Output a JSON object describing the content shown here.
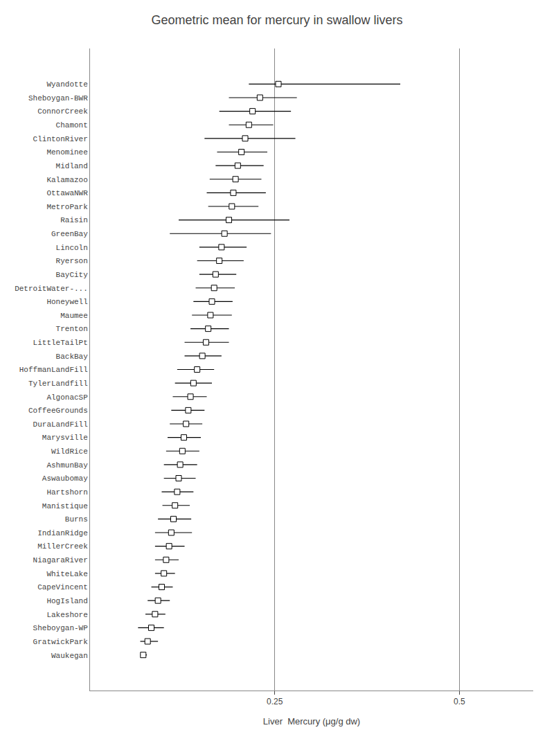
{
  "chart_data": {
    "type": "forest",
    "title": "Geometric mean for mercury in swallow livers",
    "xlabel": "Liver  Mercury (μg/g dw)",
    "categories": [
      "Wyandotte",
      "Sheboygan-BWR",
      "ConnorCreek",
      "Chamont",
      "ClintonRiver",
      "Menominee",
      "Midland",
      "Kalamazoo",
      "OttawaNWR",
      "MetroPark",
      "Raisin",
      "GreenBay",
      "Lincoln",
      "Ryerson",
      "BayCity",
      "DetroitWater-...",
      "Honeywell",
      "Maumee",
      "Trenton",
      "LittleTailPt",
      "BackBay",
      "HoffmanLandFill",
      "TylerLandfill",
      "AlgonacSP",
      "CoffeeGrounds",
      "DuraLandFill",
      "Marysville",
      "WildRice",
      "AshmunBay",
      "Aswaubomay",
      "Hartshorn",
      "Manistique",
      "Burns",
      "IndianRidge",
      "MillerCreek",
      "NiagaraRiver",
      "WhiteLake",
      "CapeVincent",
      "HogIsland",
      "Lakeshore",
      "Sheboygan-WP",
      "GratwickPark",
      "Waukegan"
    ],
    "values": [
      0.255,
      0.23,
      0.22,
      0.215,
      0.21,
      0.205,
      0.2,
      0.197,
      0.194,
      0.192,
      0.188,
      0.182,
      0.178,
      0.175,
      0.17,
      0.168,
      0.165,
      0.163,
      0.16,
      0.157,
      0.152,
      0.145,
      0.14,
      0.136,
      0.133,
      0.13,
      0.127,
      0.125,
      0.122,
      0.12,
      0.118,
      0.115,
      0.113,
      0.11,
      0.107,
      0.103,
      0.1,
      0.097,
      0.092,
      0.088,
      0.083,
      0.078,
      0.072
    ],
    "ci_lower": [
      0.215,
      0.188,
      0.175,
      0.188,
      0.155,
      0.172,
      0.17,
      0.162,
      0.158,
      0.16,
      0.12,
      0.108,
      0.148,
      0.145,
      0.148,
      0.143,
      0.14,
      0.138,
      0.136,
      0.128,
      0.128,
      0.118,
      0.115,
      0.112,
      0.11,
      0.108,
      0.105,
      0.103,
      0.1,
      0.1,
      0.097,
      0.098,
      0.092,
      0.088,
      0.088,
      0.088,
      0.088,
      0.083,
      0.078,
      0.075,
      0.065,
      0.068,
      0.068
    ],
    "ci_upper": [
      0.42,
      0.28,
      0.272,
      0.248,
      0.278,
      0.24,
      0.235,
      0.232,
      0.238,
      0.228,
      0.27,
      0.245,
      0.212,
      0.208,
      0.198,
      0.196,
      0.193,
      0.192,
      0.188,
      0.188,
      0.178,
      0.168,
      0.165,
      0.158,
      0.155,
      0.152,
      0.15,
      0.148,
      0.145,
      0.143,
      0.14,
      0.135,
      0.137,
      0.138,
      0.128,
      0.12,
      0.115,
      0.112,
      0.108,
      0.102,
      0.1,
      0.092,
      0.077
    ],
    "xlim": [
      0.0,
      0.6
    ],
    "xticks": [
      0.25,
      0.5
    ],
    "color": "black",
    "marker": "square",
    "grid": true
  }
}
